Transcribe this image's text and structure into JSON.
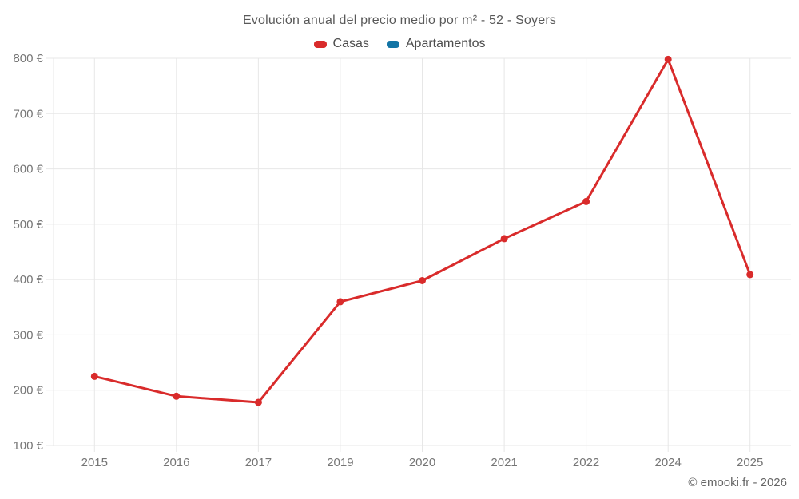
{
  "chart_data": {
    "type": "line",
    "title": "Evolución anual del precio medio por m² - 52 - Soyers",
    "categories": [
      "2015",
      "2016",
      "2017",
      "2019",
      "2020",
      "2021",
      "2022",
      "2024",
      "2025"
    ],
    "series": [
      {
        "name": "Casas",
        "color": "#d92b2b",
        "values": [
          225,
          189,
          178,
          360,
          398,
          474,
          541,
          798,
          409
        ]
      },
      {
        "name": "Apartamentos",
        "color": "#1274a5",
        "values": []
      }
    ],
    "xlabel": "",
    "ylabel": "",
    "ylim": [
      100,
      800
    ],
    "yticks": [
      100,
      200,
      300,
      400,
      500,
      600,
      700,
      800
    ],
    "ytick_suffix": " €",
    "grid": true,
    "legend_position": "top"
  },
  "footer": {
    "text": "© emooki.fr - 2026"
  }
}
